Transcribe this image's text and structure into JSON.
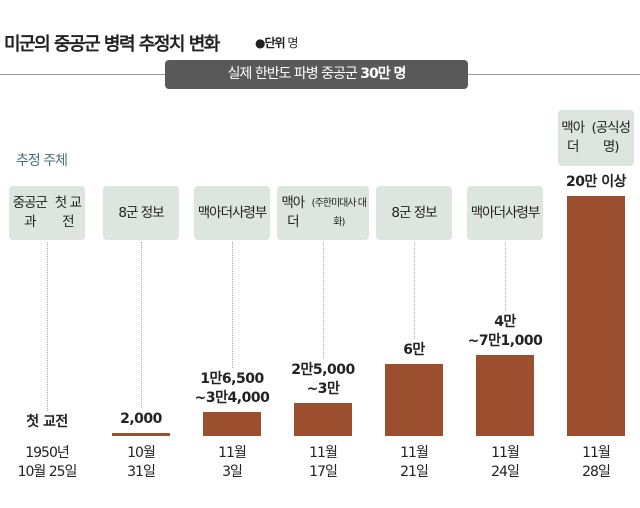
{
  "title": "미군의 중공군 병력 추정치 변화",
  "unit_label": "●단위",
  "unit": "명",
  "banner": {
    "text": "실제 한반도 파병 중공군",
    "value": "30만 명"
  },
  "subject_heading": "추정 주체",
  "chart_data": {
    "type": "bar",
    "title": "미군의 중공군 병력 추정치 변화",
    "unit": "명",
    "reference_line": {
      "label": "실제 한반도 파병 중공군 30만 명",
      "value": 300000
    },
    "categories": [
      "1950년\n10월 25일",
      "10월\n31일",
      "11월\n3일",
      "11월\n17일",
      "11월\n21일",
      "11월\n24일",
      "11월\n28일"
    ],
    "sources": [
      "중공군과\n첫 교전",
      "8군 정보",
      "맥아더\n사령부",
      "맥아더\n(주한미대사 대화)",
      "8군 정보",
      "맥아더\n사령부",
      "맥아더\n(공식성명)"
    ],
    "labels": [
      "첫 교전",
      "2,000",
      "1만6,500\n~3만4,000",
      "2만5,000\n~3만",
      "6만",
      "4만\n~7만1,000",
      "20만 이상"
    ],
    "values": [
      null,
      2000,
      20000,
      27500,
      60000,
      67500,
      200000
    ],
    "ranges": [
      null,
      [
        2000,
        2000
      ],
      [
        16500,
        34000
      ],
      [
        25000,
        30000
      ],
      [
        60000,
        60000
      ],
      [
        40000,
        71000
      ],
      [
        200000,
        null
      ]
    ],
    "bar_color": "#9c4f2e",
    "source_box_color": "#dce6de"
  }
}
